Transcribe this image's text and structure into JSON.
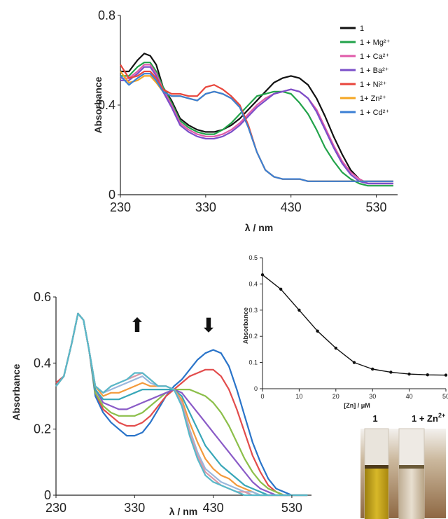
{
  "chart_data": [
    {
      "id": "top",
      "type": "line",
      "xlabel": "λ / nm",
      "ylabel": "Absorbance",
      "xlim": [
        230,
        555
      ],
      "ylim": [
        0,
        0.8
      ],
      "xticks": [
        "230",
        "330",
        "430",
        "530"
      ],
      "yticks": [
        "0",
        "0.4",
        "0.8"
      ],
      "grid": false,
      "legend_position": "top-right",
      "series": [
        {
          "name": "1",
          "color": "#111111",
          "x": [
            230,
            240,
            250,
            258,
            265,
            272,
            280,
            290,
            300,
            310,
            320,
            330,
            340,
            350,
            360,
            370,
            380,
            390,
            400,
            410,
            420,
            430,
            440,
            450,
            460,
            470,
            480,
            490,
            500,
            510,
            520,
            530,
            540,
            550
          ],
          "y": [
            0.55,
            0.55,
            0.6,
            0.63,
            0.62,
            0.58,
            0.48,
            0.42,
            0.34,
            0.31,
            0.29,
            0.28,
            0.28,
            0.29,
            0.31,
            0.34,
            0.38,
            0.42,
            0.46,
            0.5,
            0.52,
            0.53,
            0.52,
            0.49,
            0.43,
            0.35,
            0.26,
            0.18,
            0.11,
            0.07,
            0.05,
            0.05,
            0.05,
            0.05
          ]
        },
        {
          "name": "1 + Mg²⁺",
          "color": "#22a34a",
          "x": [
            230,
            240,
            250,
            258,
            265,
            272,
            280,
            290,
            300,
            310,
            320,
            330,
            340,
            350,
            360,
            370,
            380,
            390,
            400,
            410,
            420,
            430,
            440,
            450,
            460,
            470,
            480,
            490,
            500,
            510,
            520,
            530,
            540,
            550
          ],
          "y": [
            0.53,
            0.53,
            0.57,
            0.59,
            0.59,
            0.55,
            0.48,
            0.41,
            0.33,
            0.3,
            0.28,
            0.27,
            0.27,
            0.29,
            0.32,
            0.36,
            0.4,
            0.44,
            0.45,
            0.46,
            0.46,
            0.45,
            0.41,
            0.36,
            0.29,
            0.21,
            0.15,
            0.1,
            0.07,
            0.05,
            0.04,
            0.04,
            0.04,
            0.04
          ]
        },
        {
          "name": "1 + Ca²⁺",
          "color": "#e05aa9",
          "x": [
            230,
            240,
            250,
            258,
            265,
            272,
            280,
            290,
            300,
            310,
            320,
            330,
            340,
            350,
            360,
            370,
            380,
            390,
            400,
            410,
            420,
            430,
            440,
            450,
            460,
            470,
            480,
            490,
            500,
            510,
            520,
            530,
            540,
            550
          ],
          "y": [
            0.52,
            0.52,
            0.55,
            0.58,
            0.58,
            0.54,
            0.47,
            0.4,
            0.32,
            0.29,
            0.27,
            0.26,
            0.26,
            0.27,
            0.29,
            0.32,
            0.36,
            0.4,
            0.43,
            0.45,
            0.46,
            0.47,
            0.46,
            0.43,
            0.38,
            0.3,
            0.22,
            0.15,
            0.1,
            0.07,
            0.05,
            0.05,
            0.05,
            0.05
          ]
        },
        {
          "name": "1 + Ba²⁺",
          "color": "#7b4fc9",
          "x": [
            230,
            240,
            250,
            258,
            265,
            272,
            280,
            290,
            300,
            310,
            320,
            330,
            340,
            350,
            360,
            370,
            380,
            390,
            400,
            410,
            420,
            430,
            440,
            450,
            460,
            470,
            480,
            490,
            500,
            510,
            520,
            530,
            540,
            550
          ],
          "y": [
            0.51,
            0.51,
            0.54,
            0.57,
            0.57,
            0.53,
            0.46,
            0.39,
            0.31,
            0.28,
            0.26,
            0.25,
            0.25,
            0.26,
            0.28,
            0.31,
            0.35,
            0.39,
            0.42,
            0.45,
            0.46,
            0.47,
            0.46,
            0.43,
            0.37,
            0.29,
            0.21,
            0.14,
            0.09,
            0.06,
            0.05,
            0.05,
            0.05,
            0.05
          ]
        },
        {
          "name": "1 + Ni²⁺",
          "color": "#e8463c",
          "x": [
            230,
            240,
            250,
            258,
            265,
            272,
            280,
            290,
            300,
            310,
            320,
            330,
            340,
            350,
            360,
            370,
            380,
            390,
            400,
            410,
            420,
            430,
            440,
            450,
            460,
            470,
            480,
            490,
            500,
            510,
            520,
            530,
            540,
            550
          ],
          "y": [
            0.58,
            0.52,
            0.53,
            0.55,
            0.55,
            0.52,
            0.47,
            0.45,
            0.45,
            0.44,
            0.44,
            0.48,
            0.49,
            0.47,
            0.44,
            0.4,
            0.31,
            0.19,
            0.11,
            0.08,
            0.07,
            0.07,
            0.07,
            0.06,
            0.06,
            0.06,
            0.06,
            0.06,
            0.06,
            0.06,
            0.06,
            0.06,
            0.06,
            0.06
          ]
        },
        {
          "name": "1+ Zn²⁺",
          "color": "#f5a623",
          "x": [
            230,
            240,
            250,
            258,
            265,
            272,
            280,
            290,
            300,
            310,
            320,
            330,
            340,
            350,
            360,
            370,
            380,
            390,
            400,
            410,
            420,
            430,
            440,
            450,
            460,
            470,
            480,
            490,
            500,
            510,
            520,
            530,
            540,
            550
          ],
          "y": [
            0.55,
            0.5,
            0.51,
            0.53,
            0.53,
            0.5,
            0.46,
            0.44,
            0.44,
            0.43,
            0.42,
            0.45,
            0.46,
            0.45,
            0.43,
            0.39,
            0.3,
            0.19,
            0.11,
            0.08,
            0.07,
            0.07,
            0.07,
            0.06,
            0.06,
            0.06,
            0.06,
            0.06,
            0.06,
            0.06,
            0.06,
            0.06,
            0.06,
            0.06
          ]
        },
        {
          "name": "1 + Cd²⁺",
          "color": "#3b7fd4",
          "x": [
            230,
            240,
            250,
            258,
            265,
            272,
            280,
            290,
            300,
            310,
            320,
            330,
            340,
            350,
            360,
            370,
            380,
            390,
            400,
            410,
            420,
            430,
            440,
            450,
            460,
            470,
            480,
            490,
            500,
            510,
            520,
            530,
            540,
            550
          ],
          "y": [
            0.53,
            0.49,
            0.52,
            0.54,
            0.54,
            0.51,
            0.46,
            0.44,
            0.44,
            0.43,
            0.42,
            0.45,
            0.46,
            0.45,
            0.43,
            0.39,
            0.3,
            0.19,
            0.11,
            0.08,
            0.07,
            0.07,
            0.07,
            0.06,
            0.06,
            0.06,
            0.06,
            0.06,
            0.06,
            0.06,
            0.06,
            0.06,
            0.06,
            0.06
          ]
        }
      ]
    },
    {
      "id": "bottom",
      "type": "line",
      "xlabel": "λ / nm",
      "ylabel": "Absorbance",
      "xlim": [
        230,
        555
      ],
      "ylim": [
        0,
        0.6
      ],
      "xticks": [
        "230",
        "330",
        "430",
        "530"
      ],
      "yticks": [
        "0",
        "0.2",
        "0.4",
        "0.6"
      ],
      "grid": false,
      "annotations": [
        {
          "text": "⬆",
          "x": 335,
          "y": 0.47
        },
        {
          "text": "⬇",
          "x": 432,
          "y": 0.47
        }
      ],
      "x": [
        230,
        240,
        250,
        258,
        265,
        272,
        280,
        290,
        300,
        310,
        320,
        330,
        340,
        350,
        360,
        370,
        380,
        390,
        400,
        410,
        420,
        430,
        440,
        450,
        460,
        470,
        480,
        490,
        500,
        510,
        520,
        530,
        540,
        550
      ],
      "series": [
        {
          "color": "#2a74c9",
          "y": [
            0.34,
            0.36,
            0.46,
            0.55,
            0.53,
            0.44,
            0.3,
            0.25,
            0.22,
            0.2,
            0.18,
            0.18,
            0.19,
            0.22,
            0.26,
            0.3,
            0.33,
            0.35,
            0.38,
            0.41,
            0.43,
            0.44,
            0.43,
            0.39,
            0.32,
            0.24,
            0.16,
            0.1,
            0.05,
            0.02,
            0.01,
            0.0,
            0.0,
            0.0
          ]
        },
        {
          "color": "#e24c4c",
          "y": [
            0.34,
            0.36,
            0.46,
            0.55,
            0.53,
            0.44,
            0.31,
            0.26,
            0.24,
            0.22,
            0.21,
            0.21,
            0.22,
            0.24,
            0.27,
            0.3,
            0.32,
            0.34,
            0.36,
            0.37,
            0.38,
            0.38,
            0.36,
            0.32,
            0.26,
            0.19,
            0.12,
            0.07,
            0.03,
            0.01,
            0.0,
            0.0,
            0.0,
            0.0
          ]
        },
        {
          "color": "#8cbf4a",
          "y": [
            0.33,
            0.36,
            0.46,
            0.55,
            0.53,
            0.44,
            0.31,
            0.27,
            0.25,
            0.24,
            0.24,
            0.24,
            0.25,
            0.27,
            0.29,
            0.31,
            0.32,
            0.32,
            0.32,
            0.31,
            0.3,
            0.28,
            0.25,
            0.21,
            0.16,
            0.11,
            0.07,
            0.04,
            0.02,
            0.01,
            0.0,
            0.0,
            0.0,
            0.0
          ]
        },
        {
          "color": "#8a5bc7",
          "y": [
            0.33,
            0.36,
            0.46,
            0.55,
            0.53,
            0.44,
            0.32,
            0.28,
            0.27,
            0.26,
            0.26,
            0.27,
            0.28,
            0.29,
            0.3,
            0.31,
            0.32,
            0.31,
            0.28,
            0.25,
            0.22,
            0.19,
            0.16,
            0.13,
            0.1,
            0.07,
            0.04,
            0.02,
            0.01,
            0.0,
            0.0,
            0.0,
            0.0,
            0.0
          ]
        },
        {
          "color": "#38a7b8",
          "y": [
            0.33,
            0.36,
            0.46,
            0.55,
            0.53,
            0.44,
            0.32,
            0.29,
            0.29,
            0.29,
            0.3,
            0.31,
            0.32,
            0.32,
            0.32,
            0.32,
            0.32,
            0.3,
            0.25,
            0.2,
            0.15,
            0.12,
            0.09,
            0.07,
            0.05,
            0.03,
            0.02,
            0.01,
            0.0,
            0.0,
            0.0,
            0.0,
            0.0,
            0.0
          ]
        },
        {
          "color": "#f39a3c",
          "y": [
            0.33,
            0.36,
            0.46,
            0.55,
            0.53,
            0.44,
            0.33,
            0.3,
            0.31,
            0.31,
            0.32,
            0.33,
            0.34,
            0.33,
            0.33,
            0.33,
            0.32,
            0.29,
            0.22,
            0.16,
            0.11,
            0.08,
            0.06,
            0.05,
            0.03,
            0.02,
            0.01,
            0.0,
            0.0,
            0.0,
            0.0,
            0.0,
            0.0,
            0.0
          ]
        },
        {
          "color": "#9ab7dc",
          "y": [
            0.33,
            0.36,
            0.46,
            0.55,
            0.53,
            0.44,
            0.33,
            0.31,
            0.32,
            0.33,
            0.34,
            0.35,
            0.36,
            0.34,
            0.33,
            0.33,
            0.32,
            0.28,
            0.2,
            0.13,
            0.08,
            0.06,
            0.04,
            0.03,
            0.02,
            0.01,
            0.01,
            0.0,
            0.0,
            0.0,
            0.0,
            0.0,
            0.0,
            0.0
          ]
        },
        {
          "color": "#d99aa9",
          "y": [
            0.33,
            0.36,
            0.46,
            0.55,
            0.53,
            0.44,
            0.33,
            0.31,
            0.33,
            0.34,
            0.35,
            0.36,
            0.37,
            0.35,
            0.33,
            0.33,
            0.32,
            0.28,
            0.19,
            0.12,
            0.07,
            0.05,
            0.03,
            0.02,
            0.01,
            0.01,
            0.0,
            0.0,
            0.0,
            0.0,
            0.0,
            0.0,
            0.0,
            0.0
          ]
        },
        {
          "color": "#58b9c9",
          "y": [
            0.33,
            0.36,
            0.46,
            0.55,
            0.53,
            0.44,
            0.33,
            0.31,
            0.33,
            0.34,
            0.35,
            0.37,
            0.37,
            0.35,
            0.33,
            0.33,
            0.32,
            0.27,
            0.18,
            0.11,
            0.06,
            0.04,
            0.03,
            0.02,
            0.01,
            0.0,
            0.0,
            0.0,
            0.0,
            0.0,
            0.0,
            0.0,
            0.0,
            0.0
          ]
        }
      ]
    },
    {
      "id": "inset",
      "type": "line",
      "xlabel": "[Zn] / μM",
      "ylabel": "Absorbance",
      "xlim": [
        0,
        50
      ],
      "ylim": [
        0,
        0.5
      ],
      "xticks": [
        "0",
        "10",
        "20",
        "30",
        "40",
        "50"
      ],
      "yticks": [
        "0",
        "0.1",
        "0.2",
        "0.3",
        "0.4",
        "0.5"
      ],
      "grid": false,
      "series": [
        {
          "color": "#111111",
          "x": [
            0,
            5,
            10,
            15,
            20,
            25,
            30,
            35,
            40,
            45,
            50
          ],
          "y": [
            0.435,
            0.38,
            0.3,
            0.22,
            0.155,
            0.1,
            0.075,
            0.063,
            0.056,
            0.053,
            0.052
          ]
        }
      ]
    }
  ],
  "photo": {
    "label_left": "1",
    "label_right_main": "1 + Zn",
    "label_right_sup": "2+",
    "colors": {
      "left": "#c7a51a",
      "right": "#d9ccb7",
      "background": "#9c7a56"
    }
  }
}
